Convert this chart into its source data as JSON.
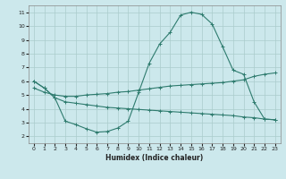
{
  "xlabel": "Humidex (Indice chaleur)",
  "bg_color": "#cce8ec",
  "grid_color": "#aacccc",
  "line_color": "#2e7b6e",
  "xlim": [
    -0.5,
    23.5
  ],
  "ylim": [
    1.5,
    11.5
  ],
  "xticks": [
    0,
    1,
    2,
    3,
    4,
    5,
    6,
    7,
    8,
    9,
    10,
    11,
    12,
    13,
    14,
    15,
    16,
    17,
    18,
    19,
    20,
    21,
    22,
    23
  ],
  "yticks": [
    2,
    3,
    4,
    5,
    6,
    7,
    8,
    9,
    10,
    11
  ],
  "curve1_x": [
    0,
    1,
    2,
    3,
    4,
    5,
    6,
    7,
    8,
    9,
    10,
    11,
    12,
    13,
    14,
    15,
    16,
    17,
    18,
    19,
    20,
    21,
    22,
    23
  ],
  "curve1_y": [
    6.0,
    5.5,
    4.8,
    3.1,
    2.85,
    2.55,
    2.3,
    2.35,
    2.6,
    3.1,
    5.2,
    7.3,
    8.7,
    9.55,
    10.8,
    11.0,
    10.85,
    10.15,
    8.5,
    6.8,
    6.5,
    4.5,
    3.25,
    3.2
  ],
  "curve2_x": [
    0,
    1,
    2,
    3,
    4,
    5,
    6,
    7,
    8,
    9,
    10,
    11,
    12,
    13,
    14,
    15,
    16,
    17,
    18,
    19,
    20,
    21,
    22,
    23
  ],
  "curve2_y": [
    5.5,
    5.2,
    5.0,
    4.9,
    4.9,
    5.0,
    5.05,
    5.1,
    5.2,
    5.25,
    5.35,
    5.45,
    5.55,
    5.65,
    5.7,
    5.75,
    5.8,
    5.85,
    5.9,
    6.0,
    6.1,
    6.35,
    6.5,
    6.6
  ],
  "curve3_x": [
    0,
    1,
    2,
    3,
    4,
    5,
    6,
    7,
    8,
    9,
    10,
    11,
    12,
    13,
    14,
    15,
    16,
    17,
    18,
    19,
    20,
    21,
    22,
    23
  ],
  "curve3_y": [
    6.0,
    5.5,
    4.8,
    4.5,
    4.4,
    4.3,
    4.2,
    4.1,
    4.05,
    4.0,
    3.95,
    3.9,
    3.85,
    3.8,
    3.75,
    3.7,
    3.65,
    3.6,
    3.55,
    3.5,
    3.4,
    3.35,
    3.25,
    3.2
  ]
}
